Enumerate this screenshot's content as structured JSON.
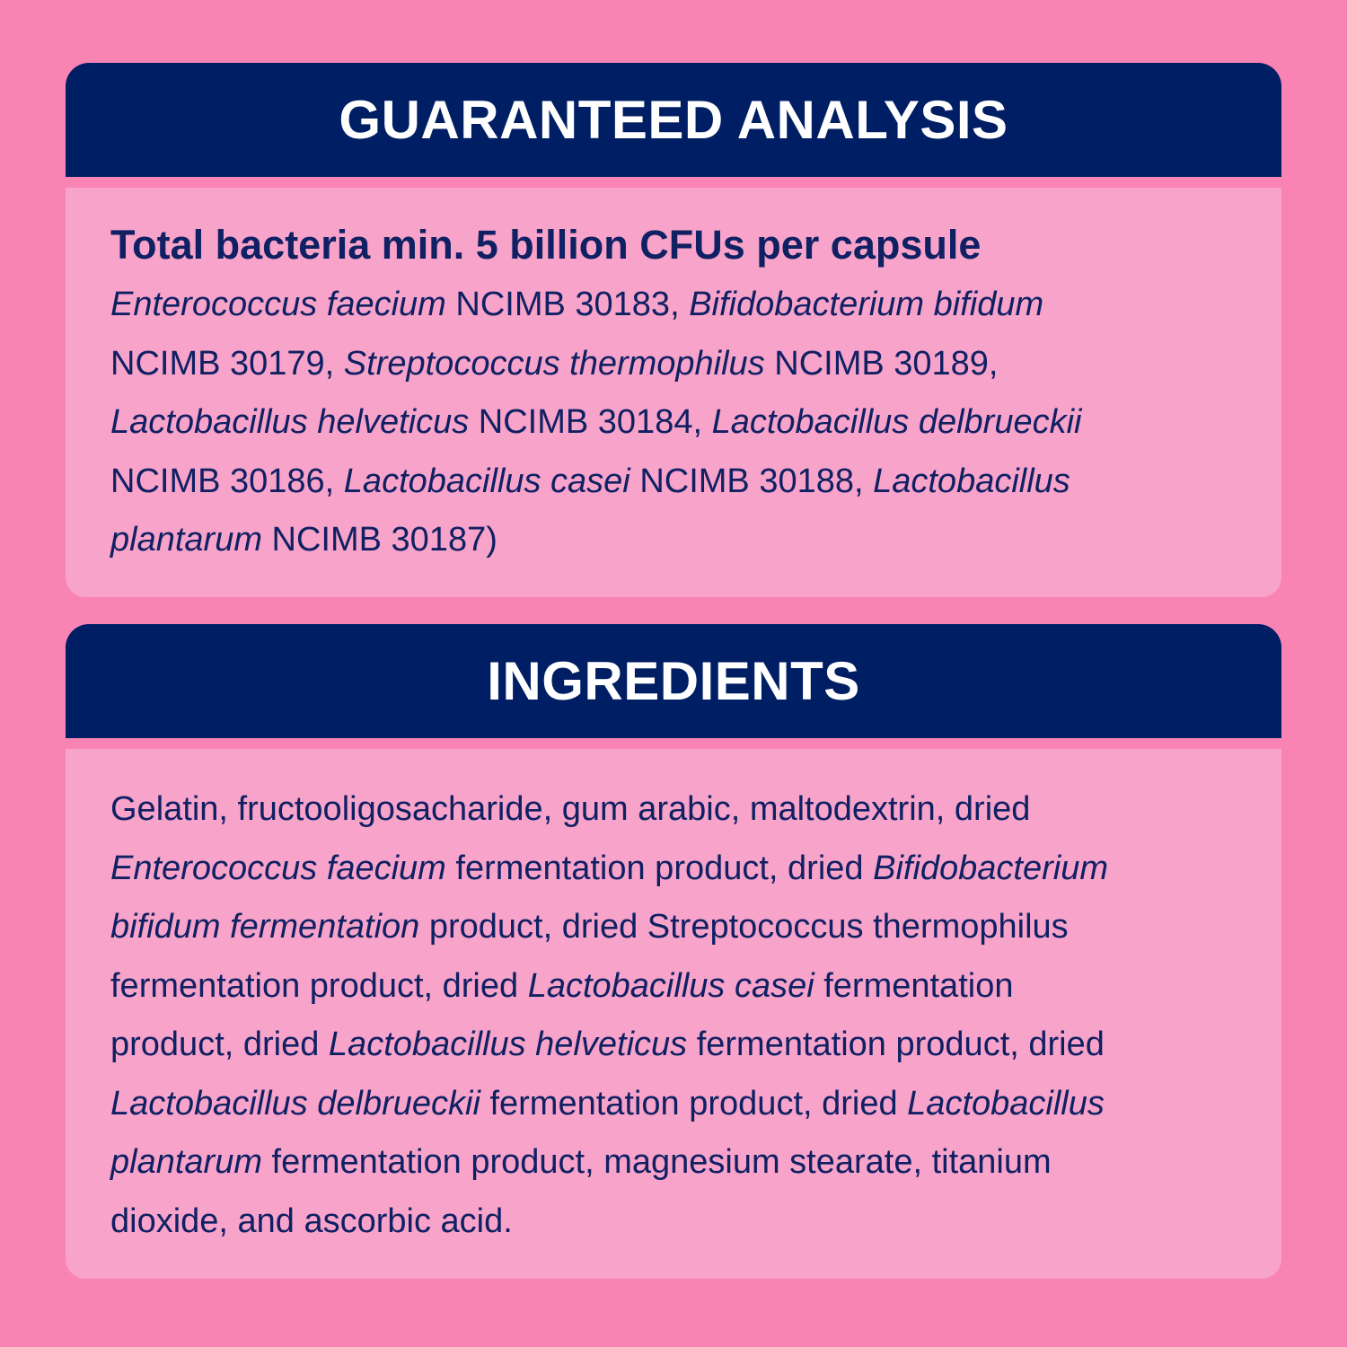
{
  "colors": {
    "background": "#F984B4",
    "header": "#001E64",
    "panel": "#F8A3C9",
    "text": "#0F2063"
  },
  "analysis": {
    "heading": "GUARANTEED ANALYSIS",
    "title": "Total bacteria min. 5 billion CFUs per capsule",
    "lines": [
      [
        {
          "t": "Enterococcus faecium",
          "i": true
        },
        {
          "t": " NCIMB 30183, ",
          "i": false
        },
        {
          "t": "Bifidobacterium bifidum",
          "i": true
        }
      ],
      [
        {
          "t": "NCIMB 30179, ",
          "i": false
        },
        {
          "t": "Streptococcus thermophilus",
          "i": true
        },
        {
          "t": " NCIMB 30189,",
          "i": false
        }
      ],
      [
        {
          "t": "Lactobacillus helveticus",
          "i": true
        },
        {
          "t": " NCIMB 30184, ",
          "i": false
        },
        {
          "t": "Lactobacillus delbrueckii",
          "i": true
        }
      ],
      [
        {
          "t": "NCIMB 30186, ",
          "i": false
        },
        {
          "t": "Lactobacillus casei",
          "i": true
        },
        {
          "t": " NCIMB 30188, ",
          "i": false
        },
        {
          "t": "Lactobacillus",
          "i": true
        }
      ],
      [
        {
          "t": "plantarum",
          "i": true
        },
        {
          "t": " NCIMB 30187)",
          "i": false
        }
      ]
    ]
  },
  "ingredients": {
    "heading": "INGREDIENTS",
    "lines": [
      [
        {
          "t": "Gelatin, fructooligosacharide, gum arabic, maltodextrin, dried",
          "i": false
        }
      ],
      [
        {
          "t": "Enterococcus faecium",
          "i": true
        },
        {
          "t": " fermentation product, dried ",
          "i": false
        },
        {
          "t": "Bifidobacterium",
          "i": true
        }
      ],
      [
        {
          "t": "bifidum fermentation",
          "i": true
        },
        {
          "t": " product, dried Streptococcus thermophilus",
          "i": false
        }
      ],
      [
        {
          "t": "fermentation product, dried ",
          "i": false
        },
        {
          "t": "Lactobacillus casei",
          "i": true
        },
        {
          "t": " fermentation",
          "i": false
        }
      ],
      [
        {
          "t": "product, dried ",
          "i": false
        },
        {
          "t": "Lactobacillus helveticus",
          "i": true
        },
        {
          "t": " fermentation product, dried",
          "i": false
        }
      ],
      [
        {
          "t": "Lactobacillus delbrueckii",
          "i": true
        },
        {
          "t": " fermentation product, dried ",
          "i": false
        },
        {
          "t": "Lactobacillus",
          "i": true
        }
      ],
      [
        {
          "t": "plantarum",
          "i": true
        },
        {
          "t": " fermentation product, magnesium stearate, titanium",
          "i": false
        }
      ],
      [
        {
          "t": "dioxide, and ascorbic acid.",
          "i": false
        }
      ]
    ]
  }
}
